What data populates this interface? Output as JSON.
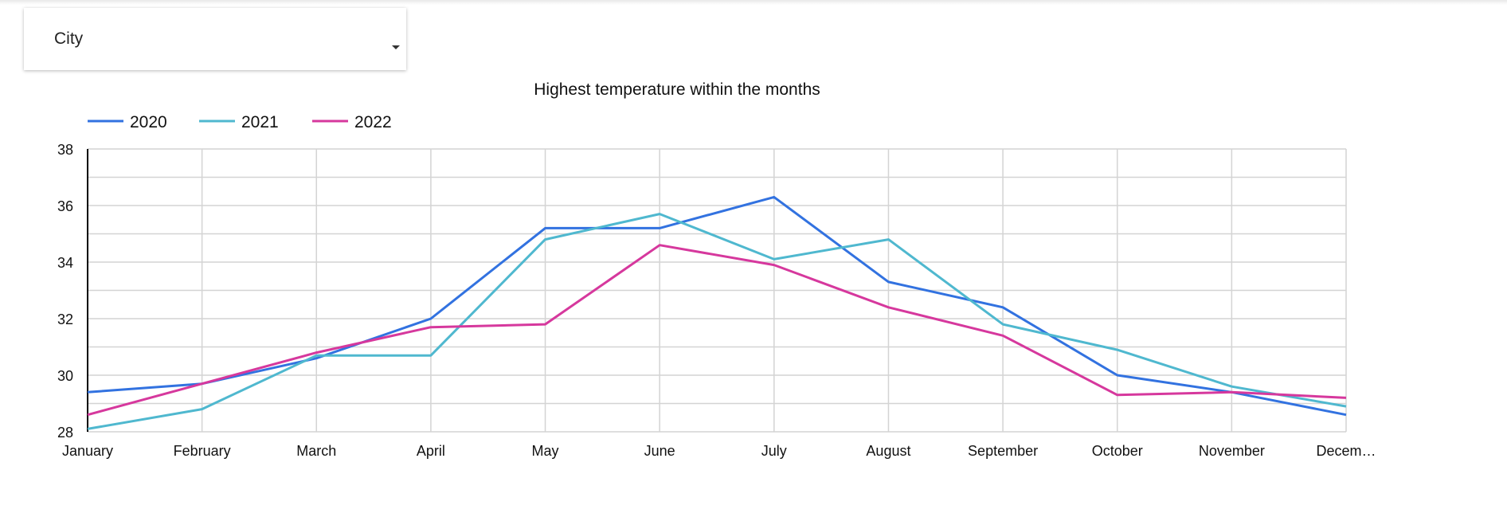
{
  "filter": {
    "label": "City"
  },
  "chart_data": {
    "type": "line",
    "title": "Highest temperature within the months",
    "xlabel": "",
    "ylabel": "",
    "categories": [
      "January",
      "February",
      "March",
      "April",
      "May",
      "June",
      "July",
      "August",
      "September",
      "October",
      "November",
      "Decem…"
    ],
    "yticks": [
      "38",
      "36",
      "34",
      "32",
      "30",
      "28"
    ],
    "ylim": [
      28,
      38
    ],
    "grid": true,
    "legend_position": "top-left",
    "series": [
      {
        "name": "2020",
        "color": "#3272e0",
        "values": [
          29.4,
          29.7,
          30.6,
          32.0,
          35.2,
          35.2,
          36.3,
          33.3,
          32.4,
          30.0,
          29.4,
          28.6
        ]
      },
      {
        "name": "2021",
        "color": "#4fb8cf",
        "values": [
          28.1,
          28.8,
          30.7,
          30.7,
          34.8,
          35.7,
          34.1,
          34.8,
          31.8,
          30.9,
          29.6,
          28.9
        ]
      },
      {
        "name": "2022",
        "color": "#d6389d",
        "values": [
          28.6,
          29.7,
          30.8,
          31.7,
          31.8,
          34.6,
          33.9,
          32.4,
          31.4,
          29.3,
          29.4,
          29.2
        ]
      }
    ]
  }
}
